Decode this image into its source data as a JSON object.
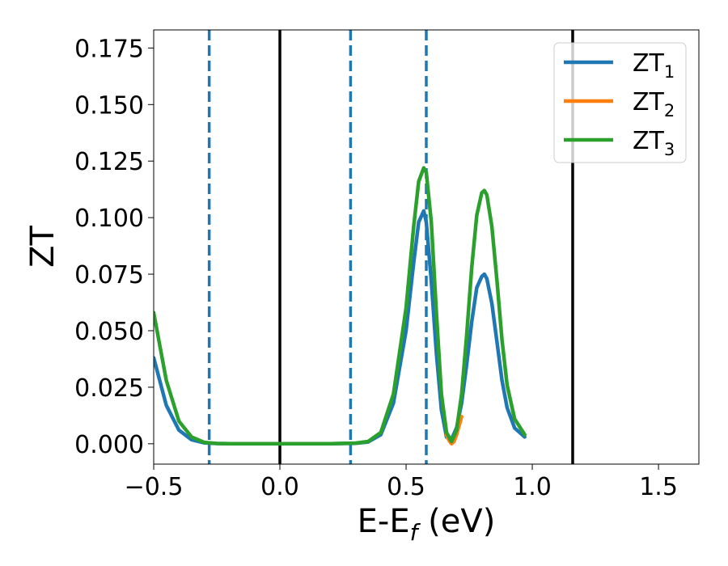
{
  "chart_data": {
    "type": "line",
    "xlabel": "E-E",
    "xlabel_sub": "f",
    "xlabel_unit": " (eV)",
    "ylabel": "ZT",
    "xlim": [
      -0.5,
      1.66
    ],
    "ylim": [
      -0.009,
      0.183
    ],
    "xticks": [
      -0.5,
      0.0,
      0.5,
      1.0,
      1.5
    ],
    "xtick_labels": [
      "−0.5",
      "0.0",
      "0.5",
      "1.0",
      "1.5"
    ],
    "yticks": [
      0.0,
      0.025,
      0.05,
      0.075,
      0.1,
      0.125,
      0.15,
      0.175
    ],
    "ytick_labels": [
      "0.000",
      "0.025",
      "0.050",
      "0.075",
      "0.100",
      "0.125",
      "0.150",
      "0.175"
    ],
    "grid": false,
    "legend_position": "top-right",
    "vlines": [
      {
        "x": -0.28,
        "color": "#1f77b4",
        "style": "dashed"
      },
      {
        "x": 0.0,
        "color": "#000000",
        "style": "solid"
      },
      {
        "x": 0.28,
        "color": "#1f77b4",
        "style": "dashed"
      },
      {
        "x": 0.58,
        "color": "#1f77b4",
        "style": "dashed"
      },
      {
        "x": 1.16,
        "color": "#000000",
        "style": "solid"
      }
    ],
    "series": [
      {
        "name": "ZT",
        "sub": "1",
        "color": "#1f77b4",
        "x": [
          -0.5,
          -0.45,
          -0.4,
          -0.35,
          -0.3,
          -0.25,
          -0.2,
          -0.1,
          0.0,
          0.1,
          0.2,
          0.3,
          0.35,
          0.4,
          0.45,
          0.5,
          0.53,
          0.55,
          0.57,
          0.58,
          0.6,
          0.62,
          0.64,
          0.66,
          0.68,
          0.7,
          0.72,
          0.74,
          0.76,
          0.78,
          0.8,
          0.81,
          0.82,
          0.84,
          0.86,
          0.88,
          0.9,
          0.93,
          0.97
        ],
        "y": [
          0.038,
          0.017,
          0.006,
          0.0018,
          0.0004,
          0.0001,
          0.0,
          0.0,
          0.0,
          0.0,
          0.0,
          0.0002,
          0.0008,
          0.004,
          0.018,
          0.05,
          0.08,
          0.098,
          0.103,
          0.098,
          0.072,
          0.04,
          0.015,
          0.003,
          0.002,
          0.007,
          0.018,
          0.035,
          0.054,
          0.069,
          0.074,
          0.075,
          0.073,
          0.062,
          0.045,
          0.028,
          0.016,
          0.007,
          0.003
        ]
      },
      {
        "name": "ZT",
        "sub": "2",
        "color": "#ff7f0e",
        "x": [
          0.66,
          0.67,
          0.68,
          0.69,
          0.7,
          0.72
        ],
        "y": [
          0.004,
          0.0015,
          0.0,
          0.001,
          0.004,
          0.012
        ]
      },
      {
        "name": "ZT",
        "sub": "3",
        "color": "#2ca02c",
        "x": [
          -0.5,
          -0.45,
          -0.4,
          -0.35,
          -0.3,
          -0.25,
          -0.2,
          -0.1,
          0.0,
          0.1,
          0.2,
          0.3,
          0.35,
          0.4,
          0.45,
          0.5,
          0.53,
          0.55,
          0.57,
          0.58,
          0.6,
          0.62,
          0.64,
          0.66,
          0.68,
          0.7,
          0.72,
          0.74,
          0.76,
          0.78,
          0.8,
          0.81,
          0.82,
          0.84,
          0.86,
          0.88,
          0.9,
          0.93,
          0.97
        ],
        "y": [
          0.058,
          0.028,
          0.01,
          0.003,
          0.0006,
          0.0001,
          0.0,
          0.0,
          0.0,
          0.0,
          0.0,
          0.0003,
          0.001,
          0.005,
          0.022,
          0.06,
          0.096,
          0.116,
          0.122,
          0.12,
          0.098,
          0.058,
          0.022,
          0.005,
          0.001,
          0.006,
          0.022,
          0.048,
          0.078,
          0.101,
          0.111,
          0.112,
          0.11,
          0.096,
          0.072,
          0.046,
          0.026,
          0.011,
          0.004
        ]
      }
    ]
  }
}
